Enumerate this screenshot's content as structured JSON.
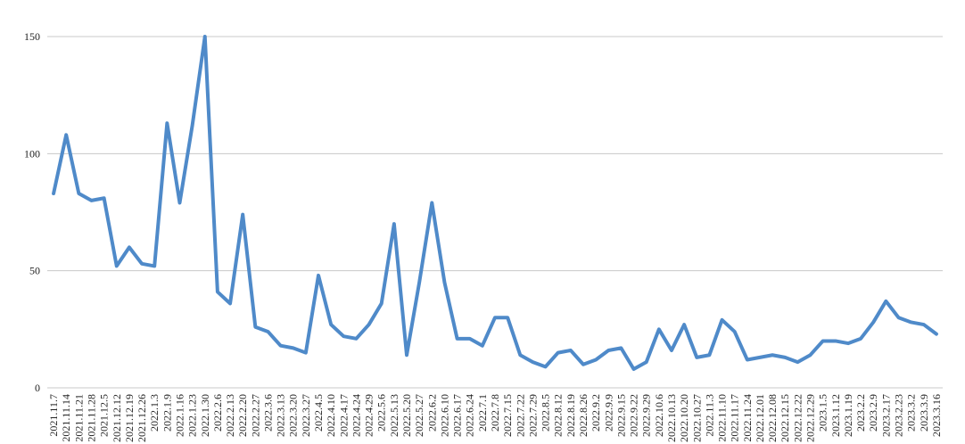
{
  "chart_data": {
    "type": "line",
    "categories": [
      "2021.11.7",
      "2021.11.14",
      "2021.11.21",
      "2021.11.28",
      "2021.12.5",
      "2021.12.12",
      "2021.12.19",
      "2021.12.26",
      "2022.1.3",
      "2022.1.9",
      "2022.1.16",
      "2022.1.23",
      "2022.1.30",
      "2022.2.6",
      "2022.2.13",
      "2022.2.20",
      "2022.2.27",
      "2022.3.6",
      "2022.3.13",
      "2022.3.20",
      "2022.3.27",
      "2022.4.5",
      "2022.4.10",
      "2022.4.17",
      "2022.4.24",
      "2022.4.29",
      "2022.5.6",
      "2022.5.13",
      "2022.5.20",
      "2022.5.27",
      "2022.6.2",
      "2022.6.10",
      "2022.6.17",
      "2022.6.24",
      "2022.7.1",
      "2022.7.8",
      "2022.7.15",
      "2022.7.22",
      "2022.7.29",
      "2022.8.5",
      "2022.8.12",
      "2022.8.19",
      "2022.8.26",
      "2022.9.2",
      "2022.9.9",
      "2022.9.15",
      "2022.9.22",
      "2022.9.29",
      "2022.10.6",
      "2022.10.13",
      "2022.10.20",
      "2022.10.27",
      "2022.11.3",
      "2022.11.10",
      "2022.11.17",
      "2022.11.24",
      "2022.12.01",
      "2022.12.08",
      "2022.12.15",
      "2022.12.22",
      "2022.12.29",
      "2023.1.5",
      "2023.1.12",
      "2023.1.19",
      "2023.2.2",
      "2023.2.9",
      "2023.2.17",
      "2023.2.23",
      "2023.3.2",
      "2023.3.9",
      "2023.3.16"
    ],
    "series": [
      {
        "color": "#4f8ac9",
        "values": [
          83,
          108,
          83,
          80,
          81,
          52,
          60,
          53,
          52,
          113,
          79,
          112,
          150,
          41,
          36,
          74,
          26,
          24,
          18,
          17,
          15,
          48,
          27,
          22,
          21,
          27,
          36,
          70,
          14,
          45,
          79,
          45,
          21,
          21,
          18,
          30,
          30,
          14,
          11,
          9,
          15,
          16,
          10,
          12,
          16,
          17,
          8,
          11,
          25,
          16,
          27,
          13,
          14,
          29,
          24,
          12,
          13,
          14,
          13,
          11,
          14,
          20,
          20,
          19,
          21,
          28,
          37,
          30,
          28,
          27,
          23
        ]
      }
    ],
    "ylim": [
      0,
      150
    ],
    "yticks": [
      0,
      50,
      100,
      150
    ],
    "grid": true
  }
}
